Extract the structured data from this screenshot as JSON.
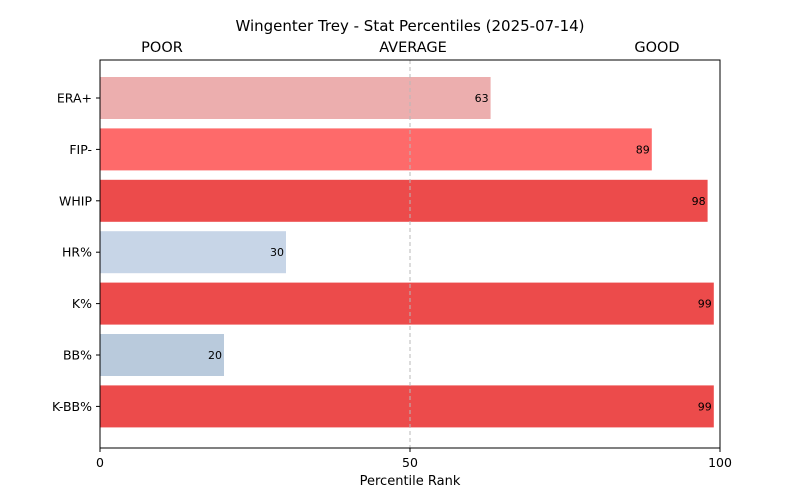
{
  "chart_data": {
    "type": "bar",
    "orientation": "horizontal",
    "title": "Wingenter Trey - Stat Percentiles (2025-07-14)",
    "xlabel": "Percentile Rank",
    "ylabel": "",
    "xlim": [
      0,
      100
    ],
    "xticks": [
      0,
      50,
      100
    ],
    "zones": [
      "POOR",
      "AVERAGE",
      "GOOD"
    ],
    "reference_line": 50,
    "categories": [
      "ERA+",
      "FIP-",
      "WHIP",
      "HR%",
      "K%",
      "BB%",
      "K-BB%"
    ],
    "values": [
      63,
      89,
      98,
      30,
      99,
      20,
      99
    ],
    "colors": [
      "#ecaeae",
      "#fe6a6a",
      "#ec4b4b",
      "#c7d5e7",
      "#ec4b4b",
      "#b9cadc",
      "#ec4b4b"
    ],
    "grid": false,
    "legend": "none"
  }
}
